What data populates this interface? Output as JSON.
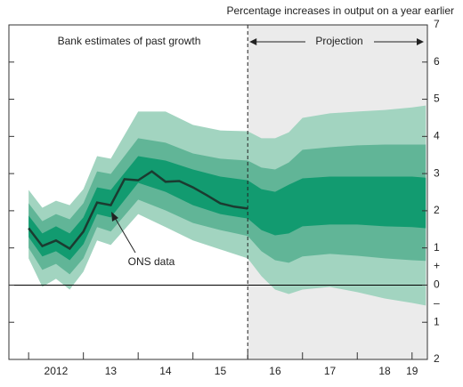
{
  "chart_data": {
    "type": "fan",
    "title": "Percentage increases in output on a year earlier",
    "annotations": {
      "past": "Bank estimates of past growth",
      "projection": "Projection",
      "ons": "ONS data",
      "plus": "+",
      "minus": "–"
    },
    "projection_start": 2016.0,
    "projection_color": "#ebebeb",
    "xlim": [
      2011.64,
      2019.28
    ],
    "ylim": [
      -2,
      7
    ],
    "yticks": [
      {
        "value": -2,
        "label": "2"
      },
      {
        "value": -1,
        "label": "1"
      },
      0,
      1,
      2,
      3,
      4,
      5,
      6,
      7
    ],
    "xticks": [
      {
        "value": 2012.5,
        "label": "2012"
      },
      {
        "value": 2013.5,
        "label": "13"
      },
      {
        "value": 2014.5,
        "label": "14"
      },
      {
        "value": 2015.5,
        "label": "15"
      },
      {
        "value": 2016.5,
        "label": "16"
      },
      {
        "value": 2017.5,
        "label": "17"
      },
      {
        "value": 2018.5,
        "label": "18"
      },
      {
        "value": 2019.0,
        "label": "19"
      }
    ],
    "xminor": [
      2012,
      2013,
      2014,
      2015,
      2016,
      2017,
      2018,
      2019
    ],
    "band_x": [
      2012.0,
      2012.25,
      2012.5,
      2012.75,
      2013.0,
      2013.25,
      2013.5,
      2014.0,
      2014.5,
      2015.0,
      2015.5,
      2016.0,
      2016.25,
      2016.5,
      2016.75,
      2017.0,
      2017.5,
      2018.0,
      2018.5,
      2019.0,
      2019.25
    ],
    "bands": [
      {
        "color": "#a2d4c0",
        "upper": [
          2.56,
          2.08,
          2.27,
          2.15,
          2.58,
          3.47,
          3.4,
          4.67,
          4.67,
          4.31,
          4.16,
          4.14,
          3.95,
          3.95,
          4.11,
          4.5,
          4.62,
          4.67,
          4.71,
          4.78,
          4.83
        ],
        "lower": [
          0.72,
          -0.05,
          0.17,
          -0.12,
          0.36,
          1.2,
          1.08,
          1.91,
          1.56,
          1.2,
          0.96,
          0.72,
          0.24,
          -0.12,
          -0.24,
          -0.12,
          -0.05,
          -0.19,
          -0.36,
          -0.48,
          -0.55
        ]
      },
      {
        "color": "#61b597",
        "upper": [
          2.2,
          1.72,
          1.91,
          1.77,
          2.2,
          3.06,
          2.99,
          3.95,
          3.83,
          3.54,
          3.4,
          3.35,
          3.16,
          3.11,
          3.3,
          3.64,
          3.71,
          3.76,
          3.78,
          3.78,
          3.78
        ],
        "lower": [
          1.0,
          0.41,
          0.57,
          0.29,
          0.72,
          1.56,
          1.44,
          2.3,
          2.01,
          1.67,
          1.48,
          1.32,
          0.91,
          0.67,
          0.6,
          0.77,
          0.84,
          0.79,
          0.72,
          0.67,
          0.65
        ]
      },
      {
        "color": "#129b70",
        "upper": [
          1.87,
          1.39,
          1.58,
          1.39,
          1.82,
          2.63,
          2.56,
          3.47,
          3.35,
          3.11,
          2.92,
          2.82,
          2.58,
          2.51,
          2.7,
          2.87,
          2.92,
          2.92,
          2.92,
          2.92,
          2.89
        ],
        "lower": [
          1.29,
          0.77,
          0.91,
          0.67,
          1.1,
          1.91,
          1.82,
          2.75,
          2.51,
          2.15,
          1.91,
          1.79,
          1.48,
          1.34,
          1.39,
          1.58,
          1.63,
          1.63,
          1.58,
          1.56,
          1.53
        ]
      }
    ],
    "line": {
      "color": "#1b3b30",
      "x": [
        2012.0,
        2012.25,
        2012.5,
        2012.75,
        2013.0,
        2013.25,
        2013.5,
        2013.75,
        2014.0,
        2014.25,
        2014.5,
        2014.75,
        2015.0,
        2015.25,
        2015.5,
        2015.75,
        2016.0
      ],
      "values": [
        1.53,
        1.05,
        1.2,
        0.98,
        1.44,
        2.22,
        2.15,
        2.85,
        2.82,
        3.06,
        2.78,
        2.8,
        2.63,
        2.42,
        2.2,
        2.11,
        2.06
      ]
    }
  }
}
